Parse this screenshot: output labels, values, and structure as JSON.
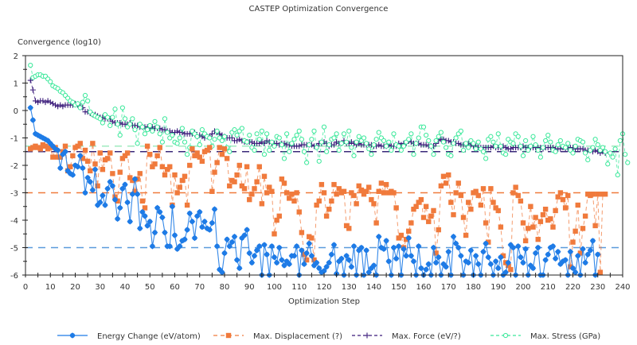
{
  "chart_data": {
    "type": "line",
    "title": "CASTEP Optimization Convergence",
    "xlabel": "Optimization Step",
    "ylabel": "Convergence (log10)",
    "xlim": [
      0,
      240
    ],
    "ylim": [
      -6,
      2
    ],
    "xticks": [
      0,
      10,
      20,
      30,
      40,
      50,
      60,
      70,
      80,
      90,
      100,
      110,
      120,
      130,
      140,
      150,
      160,
      170,
      180,
      190,
      200,
      210,
      220,
      230,
      240
    ],
    "yticks": [
      2,
      1,
      0,
      -1,
      -2,
      -3,
      -4,
      -5,
      -6
    ],
    "grid": false,
    "legend_position": "bottom",
    "thresholds": [
      {
        "series": "Energy Change (eV/atom)",
        "value": -5,
        "color": "#5a9bdc"
      },
      {
        "series": "Max. Displacement (?)",
        "value": -3,
        "color": "#f07a3c"
      },
      {
        "series": "Max. Force (eV/?)",
        "value": -1.5,
        "color": "#3a2a7a"
      },
      {
        "series": "Max. Stress (GPa)",
        "value": -1.3,
        "color": "#a8ecc4"
      }
    ],
    "series": [
      {
        "name": "Energy Change (eV/atom)",
        "color": "#1e7be6",
        "marker": "diamond",
        "x_start": 2,
        "values": [
          0.1,
          -0.35,
          -0.85,
          -0.9,
          -0.95,
          -1.0,
          -1.05,
          -1.1,
          -1.2,
          -1.3,
          -1.4,
          -1.45,
          -2.1,
          -1.6,
          -1.5,
          -2.2,
          -2.3,
          -2.35,
          -2.0,
          -2.05,
          -1.65,
          -2.1,
          -3.0,
          -2.45,
          -2.6,
          -2.9,
          -2.15,
          -3.45,
          -3.35,
          -3.1,
          -3.45,
          -2.85,
          -2.6,
          -2.75,
          -3.25,
          -3.95,
          -3.55,
          -2.85,
          -2.7,
          -3.35,
          -4.05,
          -3.05,
          -2.5,
          -3.05,
          -4.3,
          -3.7,
          -3.85,
          -4.2,
          -4.05,
          -4.95,
          -4.45,
          -3.55,
          -3.7,
          -3.9,
          -4.45,
          -4.95,
          -4.95,
          -3.5,
          -4.55,
          -5.05,
          -4.95,
          -4.75,
          -4.7,
          -4.35,
          -3.75,
          -4.05,
          -4.65,
          -3.85,
          -3.7,
          -4.25,
          -4.05,
          -4.3,
          -4.35,
          -4.1,
          -3.6,
          -4.95,
          -5.8,
          -5.9,
          -5.2,
          -4.7,
          -4.95,
          -4.8,
          -4.6,
          -5.45,
          -5.75,
          -4.65,
          -4.55,
          -4.35,
          -5.2,
          -5.55,
          -5.3,
          -5.1,
          -4.95,
          -6.0,
          -4.9,
          -5.25,
          -6.0,
          -4.95,
          -5.35,
          -5.55,
          -5.0,
          -5.45,
          -5.65,
          -5.5,
          -5.6,
          -5.3,
          -5.3,
          -4.95,
          -6.0,
          -5.1,
          -5.6,
          -5.2,
          -4.85,
          -5.3,
          -5.65,
          -5.55,
          -5.75,
          -5.9,
          -5.85,
          -5.7,
          -5.55,
          -5.25,
          -4.9,
          -5.95,
          -5.5,
          -5.4,
          -6.0,
          -5.3,
          -5.45,
          -5.7,
          -4.95,
          -6.0,
          -5.1,
          -5.0,
          -6.0,
          -5.1,
          -5.9,
          -5.75,
          -5.65,
          -6.0,
          -4.6,
          -5.0,
          -5.05,
          -4.75,
          -5.5,
          -6.0,
          -5.0,
          -5.4,
          -4.95,
          -6.0,
          -5.05,
          -5.3,
          -4.65,
          -5.3,
          -5.5,
          -6.0,
          -4.95,
          -5.75,
          -6.0,
          -5.8,
          -5.6,
          -6.0,
          -5.0,
          -5.55,
          -5.35,
          -6.0,
          -5.6,
          -5.7,
          -5.15,
          -6.0,
          -4.6,
          -4.85,
          -5.0,
          -5.3,
          -6.0,
          -5.5,
          -5.55,
          -5.1,
          -6.0,
          -5.3,
          -5.6,
          -6.0,
          -5.15,
          -4.85,
          -5.35,
          -5.6,
          -6.0,
          -5.5,
          -5.75,
          -5.35,
          -6.0,
          -5.9,
          -5.55,
          -4.9,
          -5.0,
          -6.0,
          -4.95,
          -5.35,
          -5.55,
          -5.05,
          -6.0,
          -5.65,
          -5.75,
          -5.2,
          -5.0,
          -6.0,
          -6.0,
          -5.45,
          -5.25,
          -5.0,
          -4.95,
          -5.4,
          -5.15,
          -5.6,
          -5.5,
          -5.45,
          -6.0,
          -5.15,
          -5.75,
          -5.9,
          -5.3,
          -6.0,
          -5.05,
          -5.55,
          -5.25,
          -5.1,
          -4.75,
          -6.0,
          -5.25
        ],
        "label_only": false
      },
      {
        "name": "Max. Displacement (?)",
        "color": "#f07a3c",
        "marker": "square",
        "x_start": 2,
        "values": [
          -1.4,
          -1.35,
          -1.3,
          -1.35,
          -1.4,
          -1.25,
          -1.3,
          -1.4,
          -1.35,
          -1.7,
          -1.35,
          -1.7,
          -1.7,
          -1.5,
          -1.3,
          -2.2,
          -2.05,
          -1.65,
          -1.35,
          -1.3,
          -1.2,
          -1.75,
          -1.45,
          -1.85,
          -2.2,
          -1.2,
          -1.95,
          -2.75,
          -1.55,
          -2.15,
          -1.8,
          -1.75,
          -1.55,
          -2.3,
          -3.15,
          -3.3,
          -2.25,
          -1.75,
          -1.65,
          -1.55,
          -2.45,
          -2.55,
          -2.95,
          -2.5,
          -2.3,
          -3.3,
          -3.55,
          -1.3,
          -1.6,
          -2.05,
          -1.95,
          -1.65,
          -1.35,
          -2.05,
          -2.35,
          -2.15,
          -2.05,
          -3.45,
          -2.35,
          -3.0,
          -2.8,
          -2.55,
          -2.4,
          -3.45,
          -2.0,
          -1.4,
          -1.65,
          -1.55,
          -1.7,
          -1.85,
          -1.5,
          -1.45,
          -1.35,
          -2.95,
          -2.25,
          -1.9,
          -1.35,
          -1.6,
          -1.4,
          -1.75,
          -2.75,
          -2.55,
          -2.6,
          -2.35,
          -2.0,
          -2.75,
          -2.85,
          -2.05,
          -3.25,
          -3.05,
          -2.85,
          -2.6,
          -2.05,
          -3.4,
          -2.4,
          -3.0,
          -2.8,
          -2.95,
          -4.5,
          -4.0,
          -3.85,
          -2.5,
          -2.65,
          -3.0,
          -3.2,
          -3.05,
          -3.3,
          -3.0,
          -3.7,
          -4.45,
          -5.25,
          -5.45,
          -4.6,
          -4.65,
          -5.45,
          -3.45,
          -3.3,
          -2.7,
          -3.0,
          -3.85,
          -3.6,
          -3.3,
          -2.7,
          -3.05,
          -2.85,
          -3.0,
          -2.95,
          -4.2,
          -4.3,
          -3.0,
          -3.1,
          -3.4,
          -2.75,
          -2.9,
          -3.05,
          -2.95,
          -2.8,
          -3.25,
          -3.4,
          -4.1,
          -2.95,
          -2.65,
          -3.0,
          -2.7,
          -3.0,
          -2.95,
          -3.0,
          -3.55,
          -4.65,
          -4.55,
          -5.0,
          -4.7,
          -4.4,
          -4.1,
          -3.6,
          -3.5,
          -3.35,
          -3.25,
          -3.9,
          -3.5,
          -4.05,
          -3.85,
          -3.65,
          -5.2,
          -4.35,
          -2.75,
          -2.4,
          -2.65,
          -2.35,
          -3.35,
          -3.8,
          -3.0,
          -2.65,
          -3.1,
          -3.9,
          -4.55,
          -3.35,
          -3.6,
          -3.0,
          -2.95,
          -3.1,
          -3.45,
          -2.85,
          -4.1,
          -4.8,
          -2.85,
          -3.35,
          -3.55,
          -3.65,
          -4.25,
          -5.3,
          -5.55,
          -5.65,
          -5.8,
          -3.0,
          -2.8,
          -3.1,
          -3.3,
          -4.1,
          -4.75,
          -4.3,
          -3.5,
          -4.25,
          -3.9,
          -4.7,
          -4.05,
          -3.8,
          -3.6,
          -4.0,
          -3.95,
          -4.25,
          -3.65,
          -3.15,
          -3.0,
          -3.25,
          -3.55,
          -3.1,
          -5.7,
          -4.8,
          -4.4,
          -3.45,
          -5.2,
          -4.3,
          -3.85,
          -3.05,
          -3.1,
          -3.05,
          -4.2,
          -3.05,
          -5.9,
          -3.05,
          -3.05
        ]
      },
      {
        "name": "Max. Force (eV/?)",
        "color": "#3a1a7a",
        "marker": "plus",
        "x_start": 2,
        "values": [
          1.1,
          0.75,
          0.35,
          0.3,
          0.35,
          0.35,
          0.3,
          0.35,
          0.3,
          0.25,
          0.2,
          0.15,
          0.2,
          0.15,
          0.2,
          0.2,
          0.2,
          0.2,
          0.25,
          0.2,
          0.15,
          0.1,
          -0.05,
          -0.05,
          -0.1,
          -0.15,
          -0.15,
          -0.2,
          -0.25,
          -0.25,
          -0.3,
          -0.3,
          -0.3,
          -0.4,
          -0.45,
          -0.45,
          -0.45,
          -0.5,
          -0.5,
          -0.5,
          -0.45,
          -0.55,
          -0.55,
          -0.55,
          -0.6,
          -0.6,
          -0.6,
          -0.6,
          -0.65,
          -0.6,
          -0.65,
          -0.65,
          -0.65,
          -0.7,
          -0.7,
          -0.75,
          -0.75,
          -0.8,
          -0.8,
          -0.75,
          -0.8,
          -0.8,
          -0.85,
          -0.85,
          -0.85,
          -0.85,
          -0.8,
          -0.95,
          -0.9,
          -0.95,
          -1.0,
          -0.95,
          -0.95,
          -0.85,
          -0.75,
          -0.8,
          -0.85,
          -0.9,
          -0.95,
          -1.0,
          -1.0,
          -1.0,
          -1.1,
          -1.1,
          -1.05,
          -1.1,
          -1.15,
          -1.15,
          -1.15,
          -1.15,
          -1.2,
          -1.2,
          -1.2,
          -1.15,
          -1.2,
          -1.1,
          -1.15,
          -1.2,
          -1.2,
          -1.2,
          -1.25,
          -1.2,
          -1.2,
          -1.25,
          -1.25,
          -1.3,
          -1.3,
          -1.3,
          -1.3,
          -1.25,
          -1.25,
          -1.25,
          -1.25,
          -1.25,
          -1.3,
          -1.3,
          -1.2,
          -1.2,
          -1.15,
          -1.2,
          -1.3,
          -1.25,
          -1.25,
          -1.15,
          -1.2,
          -1.2,
          -1.1,
          -1.2,
          -1.2,
          -1.15,
          -1.2,
          -1.25,
          -1.2,
          -1.25,
          -1.25,
          -1.25,
          -1.25,
          -1.25,
          -1.3,
          -1.3,
          -1.25,
          -1.3,
          -1.3,
          -1.3,
          -1.25,
          -1.3,
          -1.3,
          -1.3,
          -1.2,
          -1.25,
          -1.2,
          -1.2,
          -1.1,
          -1.15,
          -1.2,
          -1.2,
          -1.2,
          -1.25,
          -1.25,
          -1.25,
          -1.3,
          -1.3,
          -1.3,
          -1.2,
          -1.1,
          -1.05,
          -1.05,
          -1.1,
          -1.1,
          -1.15,
          -1.15,
          -1.2,
          -1.2,
          -1.25,
          -1.25,
          -1.25,
          -1.2,
          -1.25,
          -1.3,
          -1.3,
          -1.35,
          -1.35,
          -1.35,
          -1.35,
          -1.35,
          -1.35,
          -1.3,
          -1.35,
          -1.35,
          -1.35,
          -1.3,
          -1.35,
          -1.4,
          -1.4,
          -1.35,
          -1.35,
          -1.35,
          -1.35,
          -1.3,
          -1.35,
          -1.35,
          -1.35,
          -1.35,
          -1.35,
          -1.35,
          -1.35,
          -1.4,
          -1.35,
          -1.35,
          -1.35,
          -1.35,
          -1.4,
          -1.4,
          -1.4,
          -1.35,
          -1.4,
          -1.4,
          -1.35,
          -1.35,
          -1.4,
          -1.4,
          -1.4,
          -1.4,
          -1.45,
          -1.45,
          -1.45,
          -1.5,
          -1.45,
          -1.5,
          -1.55,
          -1.5,
          -1.55
        ]
      },
      {
        "name": "Max. Stress (GPa)",
        "color": "#3ae89a",
        "marker": "circle",
        "x_start": 2,
        "values": [
          1.65,
          1.2,
          1.25,
          1.3,
          1.3,
          1.25,
          1.25,
          1.15,
          1.05,
          0.9,
          0.85,
          0.8,
          0.7,
          0.65,
          0.55,
          0.45,
          0.35,
          0.3,
          0.2,
          0.25,
          0.1,
          0.3,
          0.55,
          0.35,
          -0.05,
          -0.15,
          -0.2,
          -0.25,
          -0.3,
          -0.45,
          -0.15,
          -0.25,
          -0.55,
          -0.25,
          0.05,
          -0.5,
          -0.9,
          0.1,
          -0.3,
          -0.6,
          -0.5,
          -0.3,
          -0.7,
          -1.2,
          -0.5,
          -0.6,
          -0.85,
          -0.7,
          -0.55,
          -0.75,
          -0.4,
          -0.6,
          -0.85,
          -1.15,
          -0.3,
          -0.8,
          -1.0,
          -0.9,
          -1.15,
          -1.2,
          -1.0,
          -0.65,
          -1.15,
          -1.6,
          -1.35,
          -0.75,
          -0.85,
          -0.95,
          -1.25,
          -0.7,
          -0.85,
          -0.95,
          -1.0,
          -1.3,
          -1.05,
          -0.75,
          -1.0,
          -1.1,
          -0.95,
          -1.35,
          -1.5,
          -0.8,
          -0.7,
          -0.9,
          -0.75,
          -0.65,
          -1.1,
          -1.15,
          -0.9,
          -1.35,
          -1.45,
          -0.85,
          -1.05,
          -0.75,
          -1.6,
          -0.85,
          -1.45,
          -1.15,
          -1.3,
          -0.95,
          -1.0,
          -1.25,
          -1.75,
          -0.85,
          -1.5,
          -1.2,
          -1.05,
          -0.9,
          -0.75,
          -1.05,
          -1.5,
          -1.9,
          -1.25,
          -1.05,
          -0.75,
          -1.35,
          -1.85,
          -1.15,
          -0.6,
          -1.5,
          -1.25,
          -1.05,
          -1.0,
          -0.85,
          -1.45,
          -1.2,
          -0.85,
          -1.15,
          -0.75,
          -1.35,
          -1.65,
          -1.15,
          -0.95,
          -1.1,
          -1.0,
          -1.2,
          -1.4,
          -1.6,
          -1.25,
          -1.05,
          -0.8,
          -1.0,
          -1.1,
          -1.3,
          -1.15,
          -1.45,
          -0.85,
          -1.25,
          -1.3,
          -1.45,
          -1.3,
          -1.15,
          -1.05,
          -0.85,
          -1.6,
          -1.2,
          -1.0,
          -0.6,
          -0.6,
          -0.9,
          -1.1,
          -1.3,
          -1.6,
          -1.1,
          -0.95,
          -0.8,
          -1.15,
          -1.35,
          -1.6,
          -1.65,
          -1.2,
          -1.0,
          -0.85,
          -0.75,
          -1.45,
          -1.2,
          -1.35,
          -1.1,
          -1.2,
          -1.4,
          -1.15,
          -1.4,
          -1.5,
          -1.75,
          -1.05,
          -0.95,
          -1.15,
          -1.3,
          -0.85,
          -1.3,
          -1.55,
          -1.6,
          -1.05,
          -1.15,
          -1.2,
          -0.85,
          -0.95,
          -1.3,
          -1.65,
          -1.1,
          -1.45,
          -1.3,
          -0.95,
          -1.25,
          -1.45,
          -1.7,
          -1.35,
          -1.1,
          -0.9,
          -1.15,
          -1.45,
          -1.5,
          -1.25,
          -1.1,
          -1.3,
          -1.35,
          -1.2,
          -1.45,
          -1.55,
          -1.3,
          -1.05,
          -1.1,
          -1.15,
          -1.55,
          -1.8,
          -1.45,
          -1.35,
          -1.05,
          -1.25,
          -1.45,
          -1.35,
          -1.5,
          -1.95,
          -1.55,
          -1.7,
          -1.4,
          -2.35,
          -1.1,
          -0.85,
          -1.6,
          -1.9
        ]
      }
    ]
  }
}
